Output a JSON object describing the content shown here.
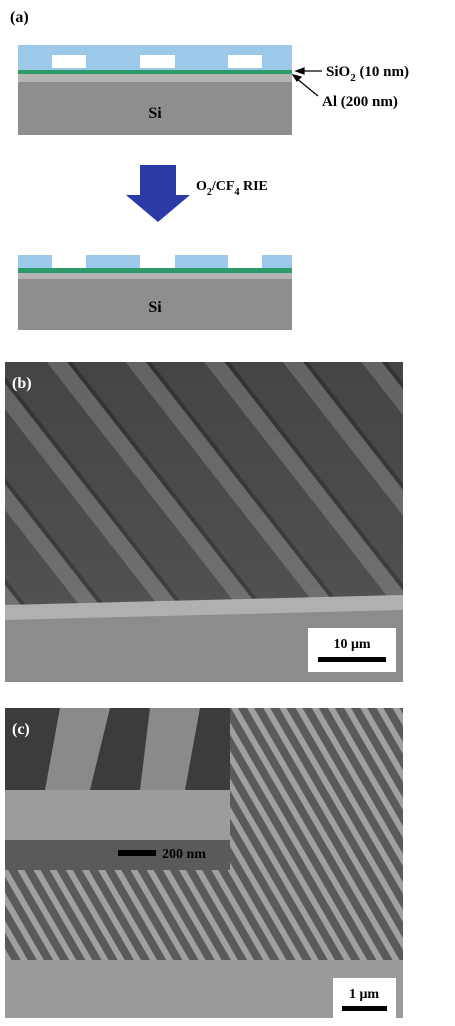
{
  "panel_a": {
    "label": "(a)",
    "sio2_label": [
      "SiO",
      "2",
      " (10 nm)"
    ],
    "al_label": "Al (200 nm)",
    "substrate_top": "Si",
    "process_label": [
      "O",
      "2",
      "/CF",
      "4",
      " RIE"
    ],
    "substrate_bottom": "Si"
  },
  "panel_b": {
    "label": "(b)",
    "scale_bar": "10 μm"
  },
  "panel_c": {
    "label": "(c)",
    "inset_scale_bar": "200 nm",
    "scale_bar": "1 μm"
  }
}
